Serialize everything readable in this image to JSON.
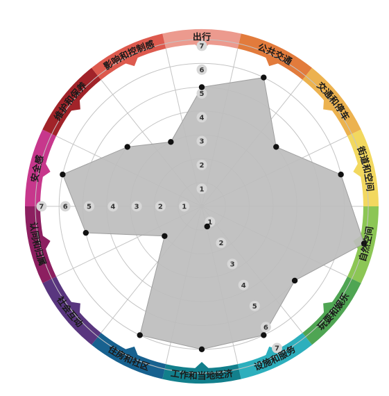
{
  "chart_data": {
    "type": "radar",
    "categories": [
      "出行",
      "公共交通",
      "交通和停车",
      "街道和空间",
      "自然空间",
      "玩耍和娱乐",
      "设施和服务",
      "工作和当地经济",
      "住房和社区",
      "社会互动",
      "认同和归属",
      "安全感",
      "维护和保养",
      "影响和控制感"
    ],
    "values": [
      5,
      6,
      4,
      6,
      7,
      5,
      6,
      6,
      6,
      2,
      5,
      6,
      4,
      3
    ],
    "rlim": [
      0,
      7
    ],
    "ticks": [
      "1",
      "2",
      "3",
      "4",
      "5",
      "6",
      "7"
    ],
    "series": [
      {
        "values": [
          5,
          6,
          4,
          6,
          7,
          5,
          6,
          6,
          6,
          2,
          5,
          6,
          4,
          3
        ]
      }
    ],
    "highlight_point": {
      "category": "自然空间",
      "value": 7
    },
    "colors": {
      "segments": [
        "#ec9a8e",
        "#e27b3c",
        "#ecb24f",
        "#f2d85f",
        "#8cc655",
        "#4fa553",
        "#2dafbd",
        "#127f8c",
        "#17618f",
        "#59367f",
        "#8c1f60",
        "#c7378c",
        "#a12329",
        "#dd5a4e"
      ],
      "fill": "#bdbdbd",
      "grid": "#c4c4c4",
      "point": "#111111"
    }
  }
}
